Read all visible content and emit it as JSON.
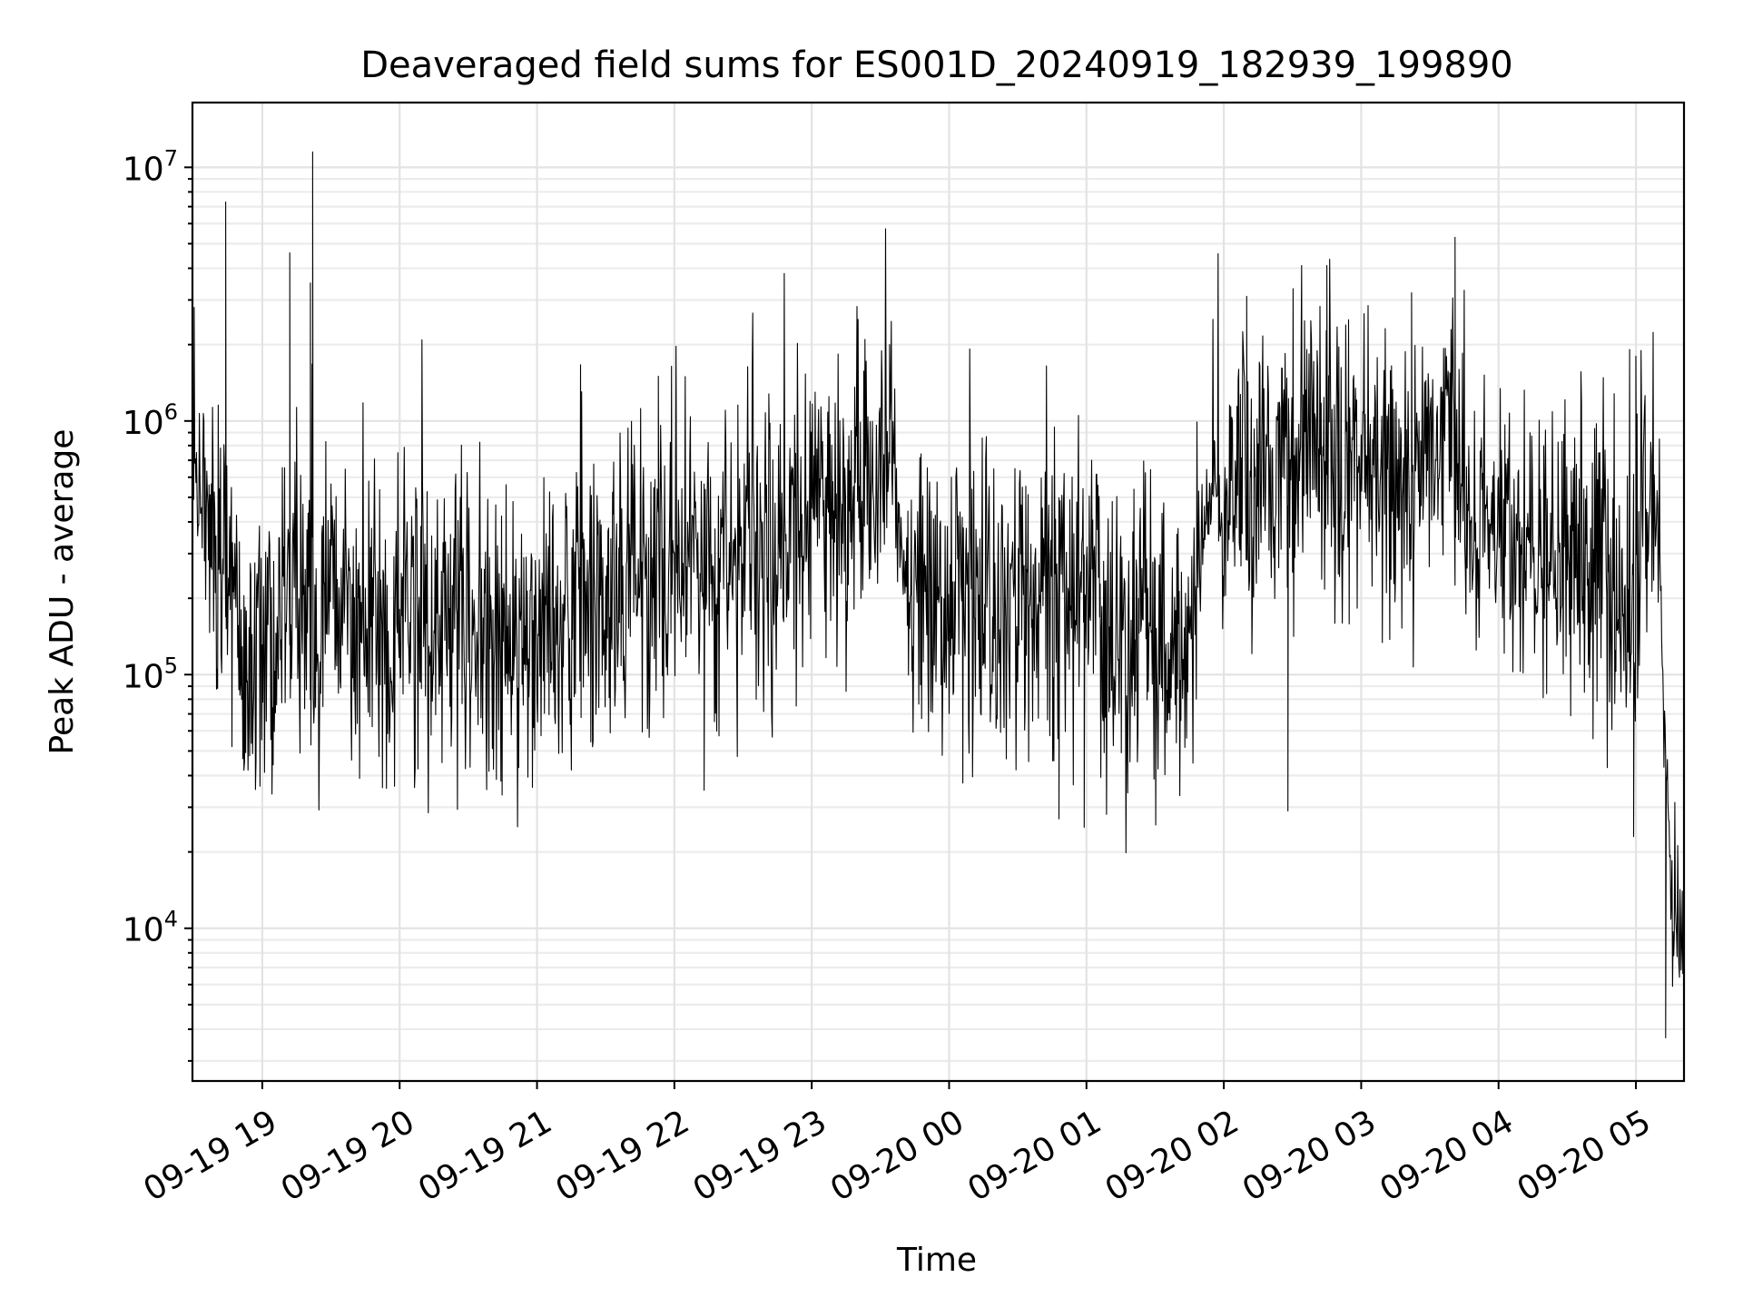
{
  "chart_data": {
    "type": "line",
    "title": "Deaveraged field sums for ES001D_20240919_182939_199890",
    "xlabel": "Time",
    "ylabel": "Peak ADU - average",
    "yscale": "log",
    "ylim": [
      2500,
      18000000
    ],
    "xlim": [
      "09-19 18:29:30",
      "09-20 05:21:00"
    ],
    "grid": "on (major and minor)",
    "x_ticks": [
      "09-19 19",
      "09-19 20",
      "09-19 21",
      "09-19 22",
      "09-19 23",
      "09-20 00",
      "09-20 01",
      "09-20 02",
      "09-20 03",
      "09-20 04",
      "09-20 05"
    ],
    "y_ticks": [
      {
        "base": "10",
        "exp": "4",
        "value": 10000
      },
      {
        "base": "10",
        "exp": "5",
        "value": 100000
      },
      {
        "base": "10",
        "exp": "6",
        "value": 1000000
      },
      {
        "base": "10",
        "exp": "7",
        "value": 10000000
      }
    ],
    "series": [
      {
        "color": "#000000",
        "x": [
          "09-19 18:30",
          "09-19 18:33",
          "09-19 18:36",
          "09-19 18:39",
          "09-19 18:42",
          "09-19 18:45",
          "09-19 18:48",
          "09-19 18:51",
          "09-19 18:54",
          "09-19 19:00",
          "09-19 19:10",
          "09-19 19:20",
          "09-19 19:27",
          "09-19 19:30",
          "09-19 19:40",
          "09-19 19:45",
          "09-19 19:50",
          "09-19 20:00",
          "09-19 20:15",
          "09-19 20:30",
          "09-19 20:45",
          "09-19 21:00",
          "09-19 21:15",
          "09-19 21:30",
          "09-19 21:45",
          "09-19 22:00",
          "09-19 22:15",
          "09-19 22:30",
          "09-19 22:45",
          "09-19 23:00",
          "09-19 23:15",
          "09-19 23:30",
          "09-19 23:35",
          "09-19 23:40",
          "09-19 23:45",
          "09-20 00:00",
          "09-20 00:15",
          "09-20 00:30",
          "09-20 00:45",
          "09-20 01:00",
          "09-20 01:15",
          "09-20 01:30",
          "09-20 01:40",
          "09-20 01:45",
          "09-20 01:50",
          "09-20 01:55",
          "09-20 02:00",
          "09-20 02:15",
          "09-20 02:30",
          "09-20 02:45",
          "09-20 03:00",
          "09-20 03:15",
          "09-20 03:30",
          "09-20 03:40",
          "09-20 03:45",
          "09-20 04:00",
          "09-20 04:15",
          "09-20 04:30",
          "09-20 04:45",
          "09-20 05:00",
          "09-20 05:05",
          "09-20 05:08",
          "09-20 05:10",
          "09-20 05:13",
          "09-20 05:16",
          "09-20 05:19",
          "09-20 05:21"
        ],
        "y": [
          600000,
          550000,
          500000,
          350000,
          250000,
          200000,
          150000,
          130000,
          120000,
          130000,
          150000,
          160000,
          200000,
          300000,
          170000,
          160000,
          150000,
          150000,
          150000,
          140000,
          140000,
          150000,
          170000,
          200000,
          220000,
          250000,
          250000,
          250000,
          350000,
          500000,
          500000,
          550000,
          1000000,
          250000,
          200000,
          200000,
          180000,
          200000,
          200000,
          200000,
          150000,
          120000,
          100000,
          100000,
          300000,
          500000,
          600000,
          650000,
          700000,
          700000,
          600000,
          550000,
          550000,
          1000000,
          450000,
          350000,
          300000,
          300000,
          250000,
          200000,
          500000,
          600000,
          400000,
          50000,
          10000,
          9500,
          8000
        ]
      }
    ],
    "peaks": [
      {
        "x": "09-19 18:44",
        "y": 7300000
      },
      {
        "x": "09-19 19:12",
        "y": 4600000
      },
      {
        "x": "09-19 19:21",
        "y": 3500000
      },
      {
        "x": "09-19 19:22",
        "y": 11500000
      },
      {
        "x": "09-19 21:53",
        "y": 1500000
      },
      {
        "x": "09-19 23:34",
        "y": 2000000
      },
      {
        "x": "09-20 02:10",
        "y": 3100000
      },
      {
        "x": "09-20 02:45",
        "y": 4100000
      },
      {
        "x": "09-20 03:22",
        "y": 3200000
      },
      {
        "x": "09-20 03:41",
        "y": 5300000
      },
      {
        "x": "09-20 05:00",
        "y": 1800000
      }
    ],
    "troughs": [
      {
        "x": "09-19 18:52",
        "y": 42000
      },
      {
        "x": "09-19 22:13",
        "y": 35000
      },
      {
        "x": "09-20 00:48",
        "y": 27000
      },
      {
        "x": "09-20 00:59",
        "y": 25000
      },
      {
        "x": "09-20 02:28",
        "y": 29000
      },
      {
        "x": "09-20 04:59",
        "y": 23000
      },
      {
        "x": "09-20 05:13",
        "y": 3700
      }
    ]
  }
}
